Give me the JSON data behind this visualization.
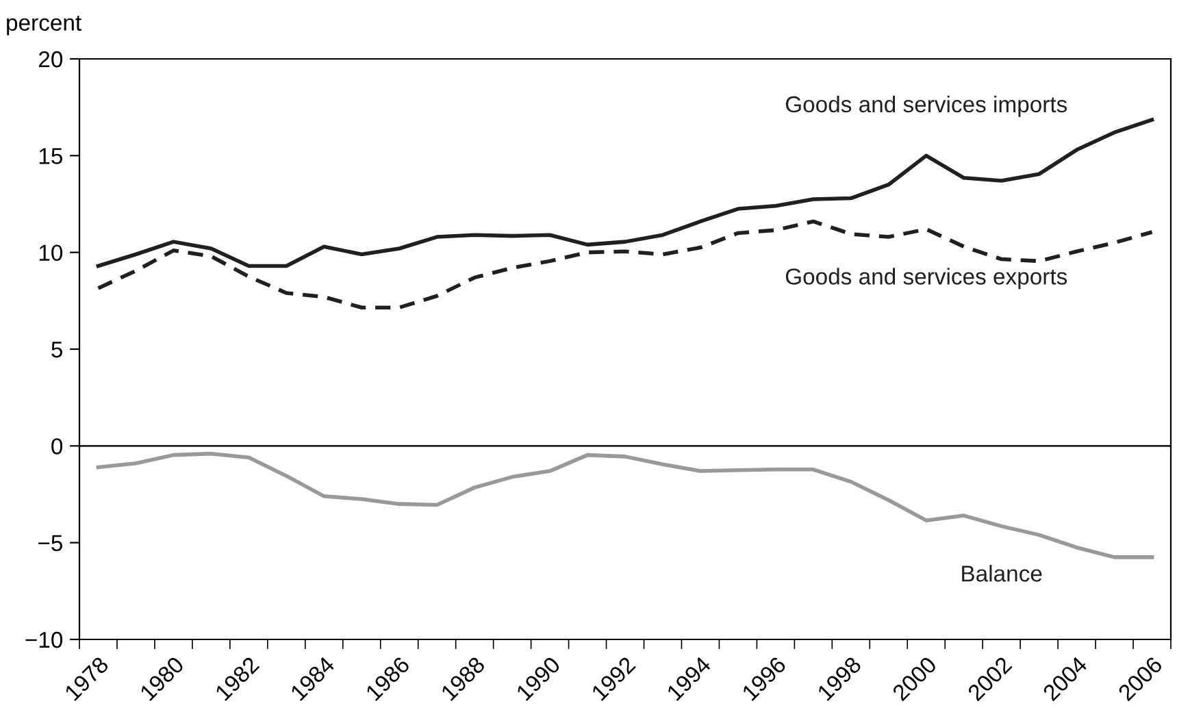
{
  "chart_data": {
    "type": "line",
    "ylabel": "percent",
    "categories": [
      "1978",
      null,
      "1980",
      null,
      "1982",
      null,
      "1984",
      null,
      "1986",
      null,
      "1988",
      null,
      "1990",
      null,
      "1992",
      null,
      "1994",
      null,
      "1996",
      null,
      "1998",
      null,
      "2000",
      null,
      "2002",
      null,
      "2004",
      null,
      "2006"
    ],
    "series": [
      {
        "name": "Goods and services imports",
        "color": "#231f20",
        "line_style": "solid",
        "values": [
          9.3,
          9.9,
          10.55,
          10.2,
          9.3,
          9.3,
          10.3,
          9.9,
          10.2,
          10.8,
          10.9,
          10.85,
          10.9,
          10.4,
          10.55,
          10.9,
          11.6,
          12.25,
          12.4,
          12.75,
          12.8,
          13.5,
          15.0,
          13.85,
          13.7,
          14.05,
          15.3,
          16.2,
          16.85
        ]
      },
      {
        "name": "Goods and services exports",
        "color": "#231f20",
        "line_style": "dashed",
        "values": [
          8.15,
          9.05,
          10.1,
          9.8,
          8.75,
          7.9,
          7.7,
          7.15,
          7.15,
          7.75,
          8.7,
          9.2,
          9.55,
          10.0,
          10.05,
          9.9,
          10.25,
          11.0,
          11.15,
          11.6,
          10.95,
          10.8,
          11.2,
          10.3,
          9.65,
          9.55,
          10.05,
          10.5,
          11.05
        ]
      },
      {
        "name": "Balance",
        "color": "#999999",
        "line_style": "solid",
        "values": [
          -1.1,
          -0.9,
          -0.47,
          -0.4,
          -0.6,
          -1.55,
          -2.6,
          -2.75,
          -3.0,
          -3.05,
          -2.15,
          -1.6,
          -1.3,
          -0.47,
          -0.55,
          -0.95,
          -1.3,
          -1.25,
          -1.22,
          -1.22,
          -1.85,
          -2.8,
          -3.85,
          -3.6,
          -4.15,
          -4.6,
          -5.25,
          -5.75,
          -5.75
        ]
      }
    ],
    "ylim": [
      -10,
      20
    ],
    "yticks": [
      {
        "value": -10,
        "label": "−10"
      },
      {
        "value": -5,
        "label": "−5"
      },
      0,
      5,
      10,
      15,
      20
    ],
    "ref_lines": [
      {
        "axis": "y",
        "value": 0,
        "label": null,
        "color": "#231f20"
      }
    ],
    "grid": false,
    "legend": false,
    "marker": "none"
  }
}
